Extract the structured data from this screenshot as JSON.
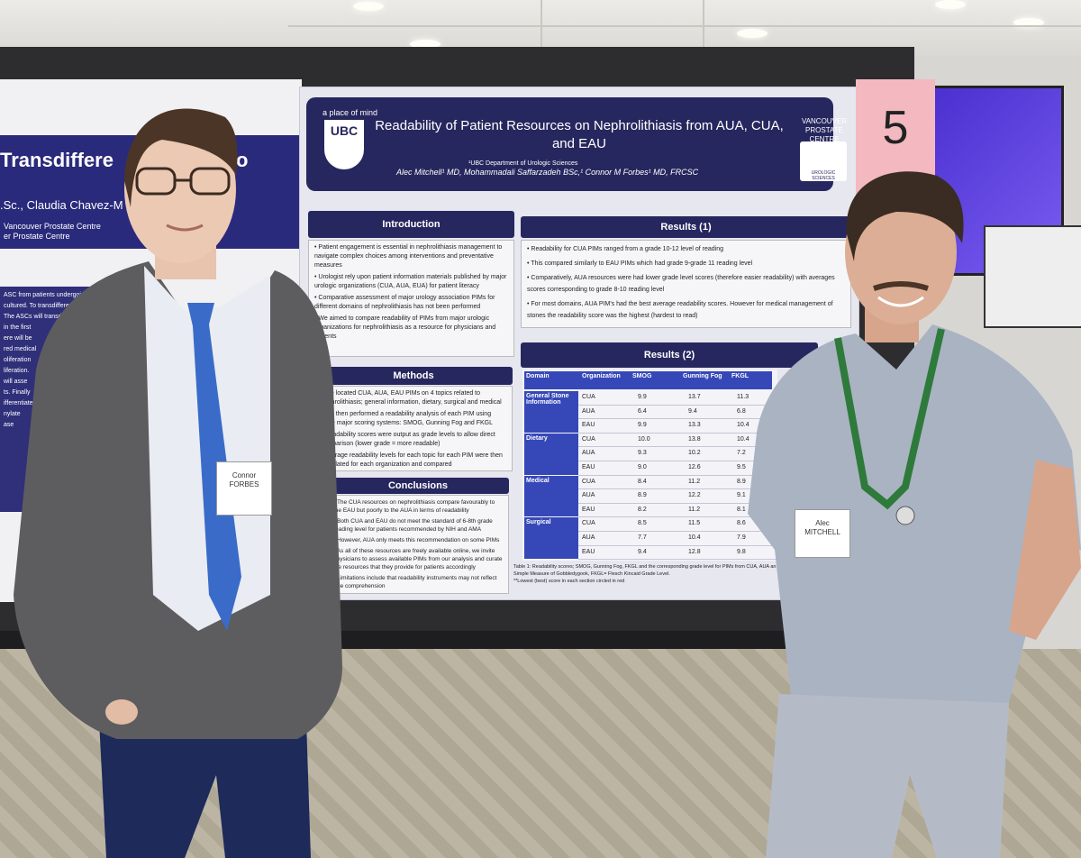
{
  "left_poster": {
    "title": "Transdiffere",
    "title_end": "o",
    "authors": ".Sc., Claudia Chavez-M",
    "affiliation_1": "Vancouver Prostate Centre",
    "affiliation_2": "er Prostate Centre",
    "body_lines": [
      "ASC from patients undergoi",
      "cultured. To transdiffere",
      "The ASCs will transdiff",
      "in the first",
      "ere will be",
      "red medical",
      "oliferation",
      "liferation.",
      "will asse",
      "ts. Finally",
      "ifferentiate",
      "nylate",
      "ase"
    ]
  },
  "poster": {
    "tagline": "a place of mind",
    "ubc": "UBC",
    "title": "Readability of Patient Resources on Nephrolithiasis from AUA, CUA, and EAU",
    "department": "¹UBC Department of Urologic Sciences",
    "authors": "Alec Mitchell¹ MD, Mohammadali Saffarzadeh BSc,¹ Connor M Forbes¹ MD, FRCSC",
    "centre": "VANCOUVER PROSTATE CENTRE",
    "logo_text": "UROLOGIC SCIENCES",
    "introduction": {
      "heading": "Introduction",
      "bullets": [
        "Patient engagement is essential in nephrolithiasis management to navigate complex choices among interventions and preventative measures",
        "Urologist rely upon patient information materials published by major urologic organizations (CUA, AUA, EUA) for patient literacy",
        "Comparative assessment of major urology association PIMs for different domains of nephrolithiasis has not been performed",
        "We aimed to compare readability of PIMs from major urologic organizations for nephrolithiasis as a resource for physicians and patients"
      ]
    },
    "methods": {
      "heading": "Methods",
      "bullets": [
        "We located CUA, AUA, EAU PIMs on 4 topics related to nephrolithiasis; general information, dietary, surgical and medical",
        "We then performed a readability analysis of each PIM using three major scoring systems: SMOG, Gunning Fog and FKGL",
        "Readability scores were output as grade levels to allow direct comparison (lower grade = more readable)",
        "Average readability levels for each topic for each PIM were then calculated for each organization and compared"
      ]
    },
    "conclusions": {
      "heading": "Conclusions",
      "bullets": [
        "The CUA resources on nephrolithiasis compare favourably to the EAU but poorly to the AUA in terms of readability",
        "Both CUA and EAU do not meet the standard of 6-8th grade reading level for patients recommended by NIH and AMA",
        "However, AUA only meets this recommendation on some PIMs",
        "As all of these resources are freely available online, we invite physicians to assess available PIMs from our analysis and curate the resources that they provide for patients accordingly",
        "Limitations include that readability instruments may not reflect true comprehension"
      ]
    },
    "results1": {
      "heading": "Results (1)",
      "bullets": [
        "Readability for CUA PIMs ranged from a grade 10-12 level of reading",
        "This compared similarly to EAU PIMs which had grade 9-grade 11 reading level",
        "Comparatively, AUA resources were had lower grade level scores (therefore easier readability) with averages scores corresponding to grade 8-10 reading level",
        "For most domains, AUA PIM's had the best average readability scores. However for medical management of stones the readability score was the highest (hardest to read)"
      ]
    },
    "results2": {
      "heading": "Results (2)",
      "columns": [
        "Domain",
        "Organization",
        "SMOG",
        "Gunning Fog",
        "FKGL"
      ],
      "groups": [
        {
          "domain": "General Stone Information",
          "rows": [
            [
              "CUA",
              "9.9",
              "13.7",
              "11.3"
            ],
            [
              "AUA",
              "6.4",
              "9.4",
              "6.8"
            ],
            [
              "EAU",
              "9.9",
              "13.3",
              "10.4"
            ]
          ]
        },
        {
          "domain": "Dietary",
          "rows": [
            [
              "CUA",
              "10.0",
              "13.8",
              "10.4"
            ],
            [
              "AUA",
              "9.3",
              "10.2",
              "7.2"
            ],
            [
              "EAU",
              "9.0",
              "12.6",
              "9.5"
            ]
          ]
        },
        {
          "domain": "Medical",
          "rows": [
            [
              "CUA",
              "8.4",
              "11.2",
              "8.9"
            ],
            [
              "AUA",
              "8.9",
              "12.2",
              "9.1"
            ],
            [
              "EAU",
              "8.2",
              "11.2",
              "8.1"
            ]
          ]
        },
        {
          "domain": "Surgical",
          "rows": [
            [
              "CUA",
              "8.5",
              "11.5",
              "8.6"
            ],
            [
              "AUA",
              "7.7",
              "10.4",
              "7.9"
            ],
            [
              "EAU",
              "9.4",
              "12.8",
              "9.8"
            ]
          ]
        }
      ],
      "caption": "Table 1: Readability scores; SMOG, Gunning Fog, FKGL and the corresponding grade level for PIMs from CUA, AUA an",
      "caption_2": "Simple Measure of Gobbledygook, FKGL= Flesch Kincaid Grade Level.",
      "caption_3": "**Lowest (best) score in each section circled in red"
    }
  },
  "sign_number": "5",
  "badge_left": {
    "first": "Connor",
    "last": "FORBES"
  },
  "badge_right": {
    "first": "Alec",
    "last": "MITCHELL"
  }
}
